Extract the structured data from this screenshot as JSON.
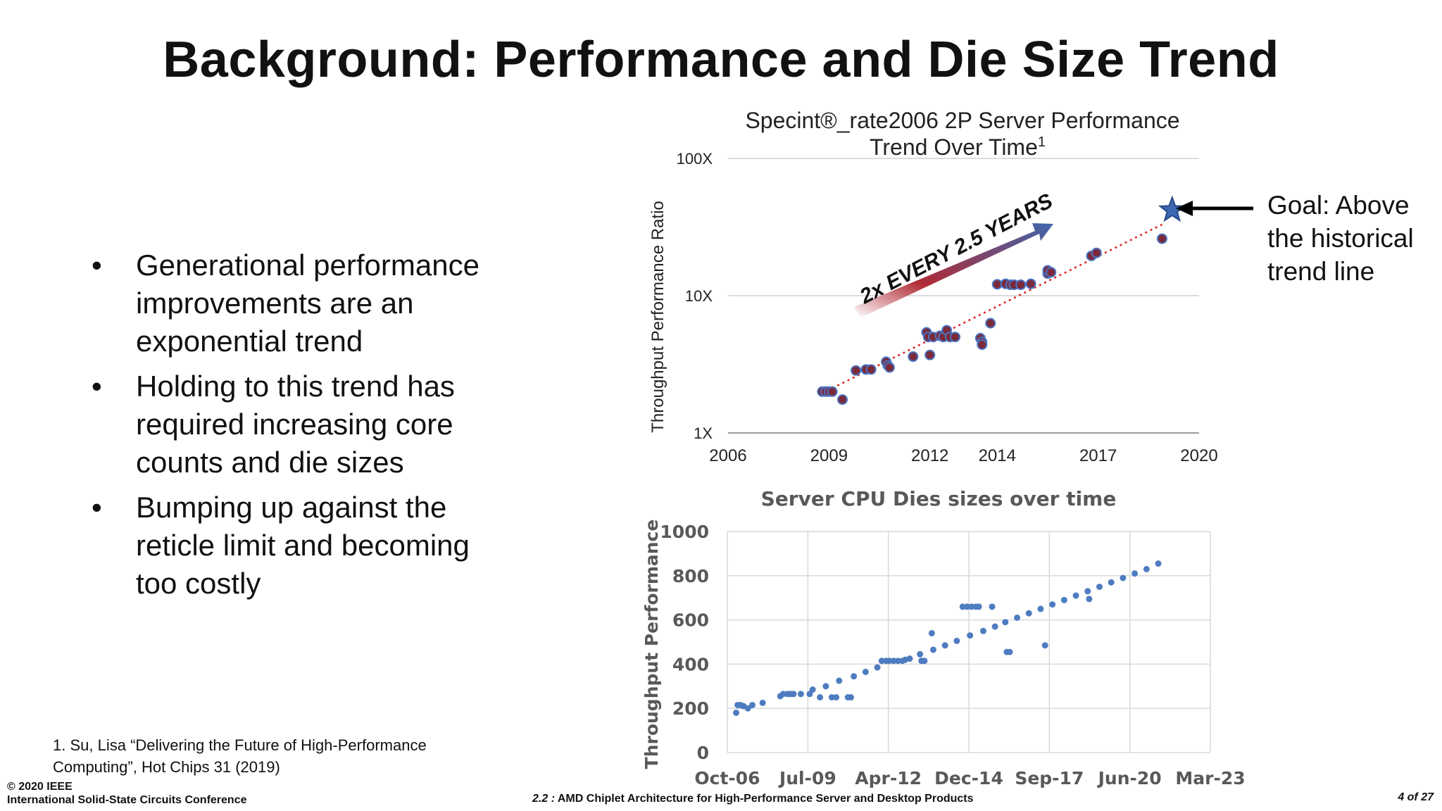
{
  "slide": {
    "title": "Background: Performance and Die Size Trend",
    "bullets": [
      "Generational performance improvements are an exponential trend",
      "Holding to this trend has required increasing core counts and die sizes",
      "Bumping up against the reticle limit and becoming too costly"
    ],
    "bullet_glyph": "•",
    "footnote": "1. Su, Lisa “Delivering the Future of High-Performance Computing”, Hot Chips 31 (2019)",
    "copyright_line1": "© 2020 IEEE",
    "copyright_line2": "International Solid-State Circuits Conference",
    "footer_num": "2.2 :",
    "footer_text": "AMD Chiplet Architecture for High-Performance Server and Desktop Products",
    "page": "4 of 27",
    "goal_text": "Goal: Above the historical trend line"
  },
  "chart_data": [
    {
      "type": "scatter",
      "title_line1": "Specint®_rate2006 2P Server Performance",
      "title_line2": "Trend Over Time",
      "title_superscript": "1",
      "xlabel": "",
      "ylabel": "Throughput Performance Ratio",
      "yscale": "log",
      "xlim": [
        2006,
        2020
      ],
      "ylim": [
        1,
        100
      ],
      "x_ticks": [
        "2006",
        "2009",
        "2012",
        "2014",
        "2017",
        "2020"
      ],
      "y_ticks": [
        "1X",
        "10X",
        "100X"
      ],
      "grid": true,
      "annotation": "2x EVERY 2.5 YEARS",
      "trend_line": {
        "x": [
          2008.8,
          2018.9
        ],
        "y": [
          1.95,
          33
        ]
      },
      "goal_star": {
        "x": 2019.2,
        "y": 42
      },
      "colors": {
        "point": "#7a2a3a",
        "point_edge": "#4a74c4",
        "trend": "#dd2222",
        "star": "#3d67b0"
      },
      "points": [
        [
          2008.8,
          2.0
        ],
        [
          2008.9,
          2.0
        ],
        [
          2009.0,
          2.0
        ],
        [
          2009.1,
          2.0
        ],
        [
          2009.4,
          1.75
        ],
        [
          2009.8,
          2.85
        ],
        [
          2010.1,
          2.9
        ],
        [
          2010.25,
          2.9
        ],
        [
          2010.7,
          3.3
        ],
        [
          2010.75,
          3.1
        ],
        [
          2010.8,
          3.0
        ],
        [
          2011.5,
          3.6
        ],
        [
          2012.0,
          3.7
        ],
        [
          2011.9,
          5.4
        ],
        [
          2011.95,
          5.0
        ],
        [
          2012.1,
          5.0
        ],
        [
          2012.3,
          5.1
        ],
        [
          2012.4,
          5.0
        ],
        [
          2012.5,
          5.6
        ],
        [
          2012.6,
          5.0
        ],
        [
          2012.75,
          5.0
        ],
        [
          2013.5,
          4.9
        ],
        [
          2013.55,
          4.6
        ],
        [
          2013.55,
          4.4
        ],
        [
          2013.8,
          6.3
        ],
        [
          2014.0,
          12.1
        ],
        [
          2014.25,
          12.2
        ],
        [
          2014.4,
          12.0
        ],
        [
          2014.5,
          12.0
        ],
        [
          2014.7,
          12.0
        ],
        [
          2015.0,
          12.2
        ],
        [
          2015.5,
          14.5
        ],
        [
          2015.5,
          15.3
        ],
        [
          2015.6,
          14.8
        ],
        [
          2016.8,
          19.5
        ],
        [
          2016.95,
          20.5
        ],
        [
          2018.9,
          26.0
        ]
      ]
    },
    {
      "type": "scatter",
      "title": "Server CPU Dies sizes over time",
      "xlabel": "",
      "ylabel": "Throughput Performance",
      "ylim": [
        0,
        1000
      ],
      "xlim": [
        "Oct-06",
        "Mar-23"
      ],
      "x_ticks": [
        "Oct-06",
        "Jul-09",
        "Apr-12",
        "Dec-14",
        "Sep-17",
        "Jun-20",
        "Mar-23"
      ],
      "y_ticks": [
        0,
        200,
        400,
        600,
        800,
        1000
      ],
      "grid": true,
      "colors": {
        "point": "#4e7cc0"
      },
      "points": [
        [
          2007.05,
          180
        ],
        [
          2007.1,
          215
        ],
        [
          2007.2,
          215
        ],
        [
          2007.3,
          210
        ],
        [
          2007.45,
          200
        ],
        [
          2007.6,
          215
        ],
        [
          2007.95,
          225
        ],
        [
          2008.55,
          255
        ],
        [
          2008.65,
          265
        ],
        [
          2008.8,
          265
        ],
        [
          2008.9,
          265
        ],
        [
          2009.0,
          265
        ],
        [
          2009.25,
          265
        ],
        [
          2009.55,
          265
        ],
        [
          2009.65,
          285
        ],
        [
          2009.9,
          250
        ],
        [
          2010.1,
          300
        ],
        [
          2010.3,
          250
        ],
        [
          2010.45,
          250
        ],
        [
          2010.55,
          325
        ],
        [
          2010.85,
          250
        ],
        [
          2010.95,
          250
        ],
        [
          2011.05,
          345
        ],
        [
          2011.45,
          365
        ],
        [
          2011.85,
          385
        ],
        [
          2012.0,
          415
        ],
        [
          2012.15,
          415
        ],
        [
          2012.25,
          415
        ],
        [
          2012.4,
          415
        ],
        [
          2012.55,
          415
        ],
        [
          2012.7,
          415
        ],
        [
          2012.8,
          420
        ],
        [
          2012.95,
          425
        ],
        [
          2013.3,
          445
        ],
        [
          2013.35,
          415
        ],
        [
          2013.45,
          415
        ],
        [
          2013.7,
          540
        ],
        [
          2013.75,
          465
        ],
        [
          2014.15,
          485
        ],
        [
          2014.55,
          505
        ],
        [
          2014.75,
          660
        ],
        [
          2014.9,
          660
        ],
        [
          2015.0,
          530
        ],
        [
          2015.05,
          660
        ],
        [
          2015.2,
          660
        ],
        [
          2015.3,
          660
        ],
        [
          2015.45,
          550
        ],
        [
          2015.75,
          660
        ],
        [
          2015.85,
          570
        ],
        [
          2016.2,
          590
        ],
        [
          2016.25,
          455
        ],
        [
          2016.35,
          455
        ],
        [
          2016.6,
          610
        ],
        [
          2017.0,
          630
        ],
        [
          2017.4,
          650
        ],
        [
          2017.55,
          485
        ],
        [
          2017.8,
          670
        ],
        [
          2018.2,
          690
        ],
        [
          2018.6,
          710
        ],
        [
          2019.0,
          730
        ],
        [
          2019.05,
          695
        ],
        [
          2019.4,
          750
        ],
        [
          2019.8,
          770
        ],
        [
          2020.2,
          790
        ],
        [
          2020.6,
          810
        ],
        [
          2021.0,
          830
        ],
        [
          2021.4,
          855
        ]
      ]
    }
  ]
}
